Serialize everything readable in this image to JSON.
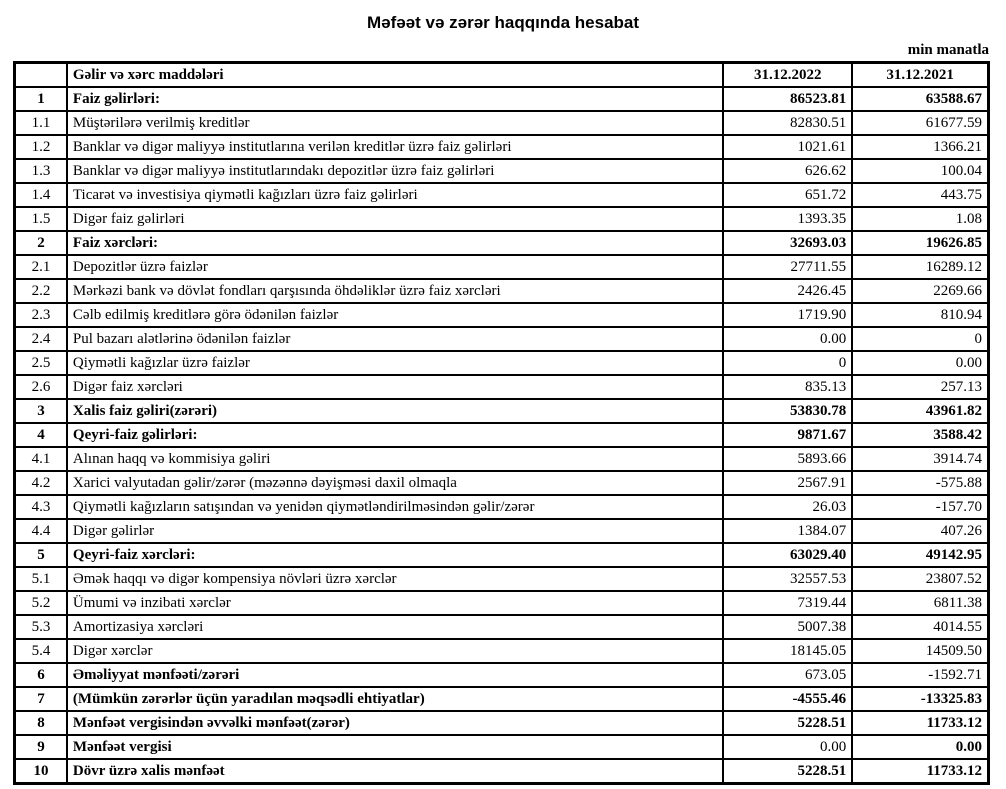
{
  "title": "Məfəət və zərər haqqında hesabat",
  "unit_note": "min manatla",
  "table": {
    "header": {
      "num": "",
      "label": "Gəlir və xərc maddələri",
      "col2022": "31.12.2022",
      "col2021": "31.12.2021"
    },
    "rows": [
      {
        "num": "1",
        "label": "Faiz gəlirləri:",
        "v2022": "86523.81",
        "v2021": "63588.67",
        "bold_label": true,
        "bold_2022": true,
        "bold_2021": true
      },
      {
        "num": "1.1",
        "label": "Müştərilərə verilmiş kreditlər",
        "v2022": "82830.51",
        "v2021": "61677.59",
        "bold_label": false,
        "bold_2022": false,
        "bold_2021": false
      },
      {
        "num": "1.2",
        "label": "Banklar və digər maliyyə institutlarına verilən kreditlər üzrə faiz gəlirləri",
        "v2022": "1021.61",
        "v2021": "1366.21",
        "bold_label": false,
        "bold_2022": false,
        "bold_2021": false
      },
      {
        "num": "1.3",
        "label": "Banklar və digər maliyyə institutlarındakı depozitlər üzrə faiz gəlirləri",
        "v2022": "626.62",
        "v2021": "100.04",
        "bold_label": false,
        "bold_2022": false,
        "bold_2021": false
      },
      {
        "num": "1.4",
        "label": "Ticarət və investisiya qiymətli kağızları üzrə faiz gəlirləri",
        "v2022": "651.72",
        "v2021": "443.75",
        "bold_label": false,
        "bold_2022": false,
        "bold_2021": false
      },
      {
        "num": "1.5",
        "label": "Digər faiz gəlirləri",
        "v2022": "1393.35",
        "v2021": "1.08",
        "bold_label": false,
        "bold_2022": false,
        "bold_2021": false
      },
      {
        "num": "2",
        "label": "Faiz xərcləri:",
        "v2022": "32693.03",
        "v2021": "19626.85",
        "bold_label": true,
        "bold_2022": true,
        "bold_2021": true
      },
      {
        "num": "2.1",
        "label": "Depozitlər üzrə faizlər",
        "v2022": "27711.55",
        "v2021": "16289.12",
        "bold_label": false,
        "bold_2022": false,
        "bold_2021": false
      },
      {
        "num": "2.2",
        "label": "Mərkəzi bank və dövlət fondları qarşısında öhdəliklər üzrə faiz xərcləri",
        "v2022": "2426.45",
        "v2021": "2269.66",
        "bold_label": false,
        "bold_2022": false,
        "bold_2021": false
      },
      {
        "num": "2.3",
        "label": "Cəlb edilmiş kreditlərə görə ödənilən faizlər",
        "v2022": "1719.90",
        "v2021": "810.94",
        "bold_label": false,
        "bold_2022": false,
        "bold_2021": false
      },
      {
        "num": "2.4",
        "label": "Pul bazarı alətlərinə ödənilən faizlər",
        "v2022": "0.00",
        "v2021": "0",
        "bold_label": false,
        "bold_2022": false,
        "bold_2021": false
      },
      {
        "num": "2.5",
        "label": "Qiymətli kağızlar üzrə faizlər",
        "v2022": "0",
        "v2021": "0.00",
        "bold_label": false,
        "bold_2022": false,
        "bold_2021": false
      },
      {
        "num": "2.6",
        "label": "Digər faiz xərcləri",
        "v2022": "835.13",
        "v2021": "257.13",
        "bold_label": false,
        "bold_2022": false,
        "bold_2021": false
      },
      {
        "num": "3",
        "label": "Xalis faiz gəliri(zərəri)",
        "v2022": "53830.78",
        "v2021": "43961.82",
        "bold_label": true,
        "bold_2022": true,
        "bold_2021": true
      },
      {
        "num": "4",
        "label": "Qeyri-faiz gəlirləri:",
        "v2022": "9871.67",
        "v2021": "3588.42",
        "bold_label": true,
        "bold_2022": true,
        "bold_2021": true
      },
      {
        "num": "4.1",
        "label": "Alınan haqq və kommisiya gəliri",
        "v2022": "5893.66",
        "v2021": "3914.74",
        "bold_label": false,
        "bold_2022": false,
        "bold_2021": false
      },
      {
        "num": "4.2",
        "label": "Xarici valyutadan gəlir/zərər (məzənnə dəyişməsi daxil olmaqla",
        "v2022": "2567.91",
        "v2021": "-575.88",
        "bold_label": false,
        "bold_2022": false,
        "bold_2021": false
      },
      {
        "num": "4.3",
        "label": "Qiymətli kağızların satışından və yenidən qiymətləndirilməsindən gəlir/zərər",
        "v2022": "26.03",
        "v2021": "-157.70",
        "bold_label": false,
        "bold_2022": false,
        "bold_2021": false
      },
      {
        "num": "4.4",
        "label": "Digər gəlirlər",
        "v2022": "1384.07",
        "v2021": "407.26",
        "bold_label": false,
        "bold_2022": false,
        "bold_2021": false
      },
      {
        "num": "5",
        "label": "Qeyri-faiz xərcləri:",
        "v2022": "63029.40",
        "v2021": "49142.95",
        "bold_label": true,
        "bold_2022": true,
        "bold_2021": true
      },
      {
        "num": "5.1",
        "label": "Əmək haqqı və digər kompensiya növləri üzrə xərclər",
        "v2022": "32557.53",
        "v2021": "23807.52",
        "bold_label": false,
        "bold_2022": false,
        "bold_2021": false
      },
      {
        "num": "5.2",
        "label": "Ümumi və inzibati xərclər",
        "v2022": "7319.44",
        "v2021": "6811.38",
        "bold_label": false,
        "bold_2022": false,
        "bold_2021": false
      },
      {
        "num": "5.3",
        "label": "Amortizasiya xərcləri",
        "v2022": "5007.38",
        "v2021": "4014.55",
        "bold_label": false,
        "bold_2022": false,
        "bold_2021": false
      },
      {
        "num": "5.4",
        "label": "Digər xərclər",
        "v2022": "18145.05",
        "v2021": "14509.50",
        "bold_label": false,
        "bold_2022": false,
        "bold_2021": false
      },
      {
        "num": "6",
        "label": "Əməliyyat mənfəəti/zərəri",
        "v2022": "673.05",
        "v2021": "-1592.71",
        "bold_label": true,
        "bold_2022": false,
        "bold_2021": false
      },
      {
        "num": "7",
        "label": "(Mümkün zərərlər üçün yaradılan məqsədli ehtiyatlar)",
        "v2022": "-4555.46",
        "v2021": "-13325.83",
        "bold_label": true,
        "bold_2022": true,
        "bold_2021": true
      },
      {
        "num": "8",
        "label": "Mənfəət vergisindən əvvəlki mənfəət(zərər)",
        "v2022": "5228.51",
        "v2021": "11733.12",
        "bold_label": true,
        "bold_2022": true,
        "bold_2021": true
      },
      {
        "num": "9",
        "label": "Mənfəət vergisi",
        "v2022": "0.00",
        "v2021": "0.00",
        "bold_label": true,
        "bold_2022": false,
        "bold_2021": true
      },
      {
        "num": "10",
        "label": "Dövr üzrə xalis mənfəət",
        "v2022": "5228.51",
        "v2021": "11733.12",
        "bold_label": true,
        "bold_2022": true,
        "bold_2021": true
      }
    ]
  }
}
